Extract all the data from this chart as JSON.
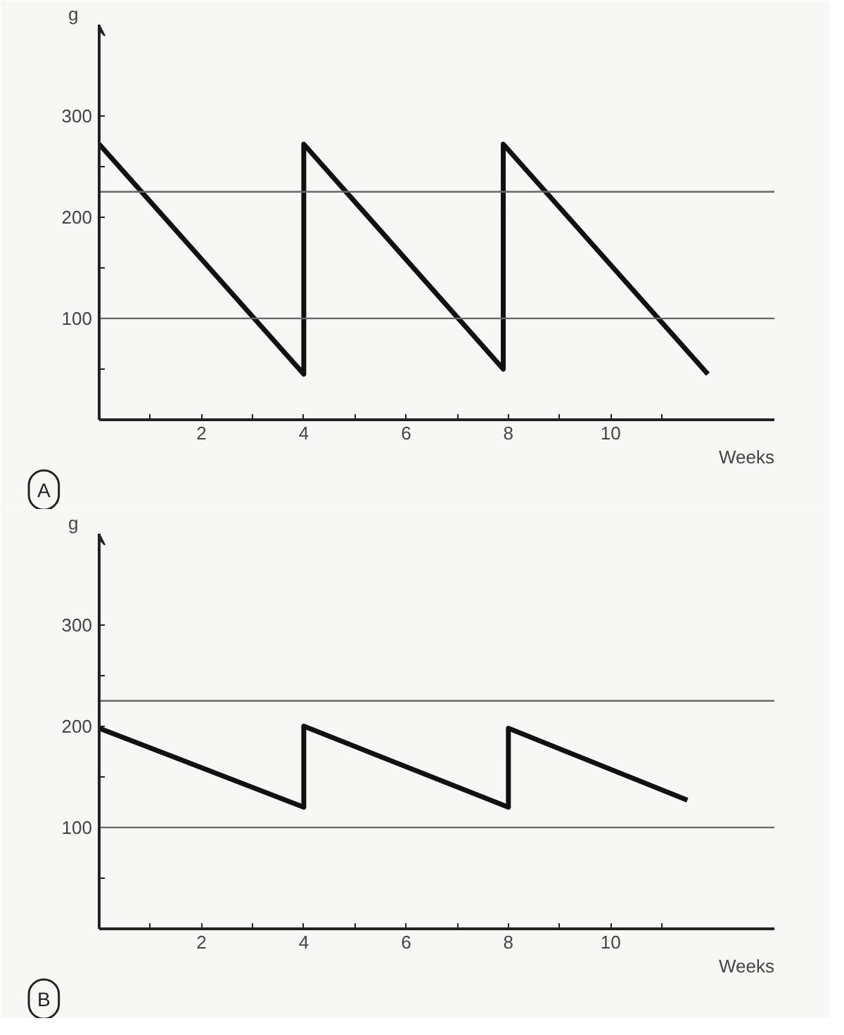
{
  "chart_data": [
    {
      "type": "line",
      "xlabel": "Weeks",
      "ylabel": "g",
      "annotations": [
        "A"
      ],
      "xlim": [
        0,
        13.2
      ],
      "ylim": [
        0,
        390
      ],
      "xticks": [
        {
          "value": 1,
          "label": null
        },
        2,
        {
          "value": 3,
          "label": null
        },
        4,
        {
          "value": 5,
          "label": null
        },
        6,
        {
          "value": 7,
          "label": null
        },
        8,
        {
          "value": 9,
          "label": null
        },
        10,
        {
          "value": 11,
          "label": null
        }
      ],
      "yticks": [
        {
          "value": 50,
          "label": null
        },
        100,
        {
          "value": 150,
          "label": null
        },
        200,
        {
          "value": 250,
          "label": null
        },
        300
      ],
      "series": [
        {
          "color": "#111111",
          "x": [
            0,
            4,
            4,
            7.9,
            7.9,
            11.9
          ],
          "values": [
            272,
            45,
            272,
            50,
            272,
            45
          ]
        }
      ],
      "ref_lines": [
        {
          "axis": "y",
          "value": 225,
          "color": "#666666"
        },
        {
          "axis": "y",
          "value": 100,
          "color": "#666666"
        }
      ],
      "grid": false,
      "line_style": "solid",
      "marker": "none"
    },
    {
      "type": "line",
      "xlabel": "Weeks",
      "ylabel": "g",
      "annotations": [
        "B"
      ],
      "xlim": [
        0,
        13.2
      ],
      "ylim": [
        0,
        390
      ],
      "xticks": [
        {
          "value": 1,
          "label": null
        },
        2,
        {
          "value": 3,
          "label": null
        },
        4,
        {
          "value": 5,
          "label": null
        },
        6,
        {
          "value": 7,
          "label": null
        },
        8,
        {
          "value": 9,
          "label": null
        },
        10,
        {
          "value": 11,
          "label": null
        }
      ],
      "yticks": [
        {
          "value": 50,
          "label": null
        },
        100,
        {
          "value": 150,
          "label": null
        },
        200,
        {
          "value": 250,
          "label": null
        },
        300
      ],
      "series": [
        {
          "color": "#111111",
          "x": [
            0,
            4,
            4,
            8,
            8,
            11.5
          ],
          "values": [
            198,
            120,
            200,
            120,
            198,
            127
          ]
        }
      ],
      "ref_lines": [
        {
          "axis": "y",
          "value": 225,
          "color": "#666666"
        },
        {
          "axis": "y",
          "value": 100,
          "color": "#666666"
        }
      ],
      "grid": false,
      "line_style": "solid",
      "marker": "none"
    }
  ]
}
